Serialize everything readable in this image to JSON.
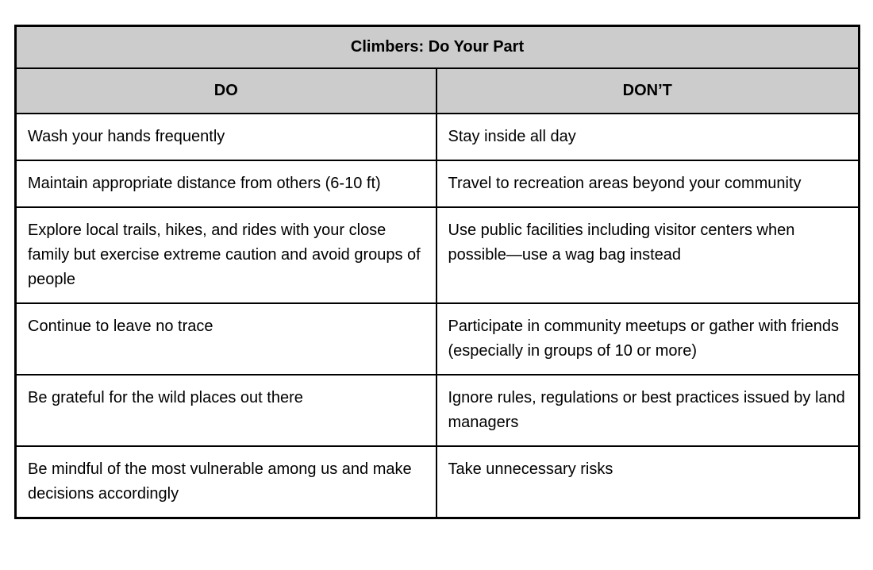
{
  "title": "Climbers: Do Your Part",
  "columns": {
    "do": "DO",
    "dont": "DON’T"
  },
  "rows": [
    {
      "do": "Wash your hands frequently",
      "dont": "Stay inside all day"
    },
    {
      "do": "Maintain appropriate distance from others (6-10 ft)",
      "dont": "Travel to recreation areas beyond your community"
    },
    {
      "do": "Explore local trails, hikes, and rides with your close family but exercise extreme caution and avoid groups of people",
      "dont": "Use public facilities including visitor centers when possible—use a wag bag instead"
    },
    {
      "do": "Continue to leave no trace",
      "dont": "Participate in community meetups or gather with friends (especially in groups of 10 or more)"
    },
    {
      "do": "Be grateful for the wild places out there",
      "dont": "Ignore rules, regulations or best practices issued by land managers"
    },
    {
      "do": "Be mindful of the most vulnerable among us and make decisions accordingly",
      "dont": "Take unnecessary risks"
    }
  ],
  "colors": {
    "header_bg": "#cccccc",
    "border": "#000000",
    "text": "#000000",
    "background": "#ffffff"
  }
}
